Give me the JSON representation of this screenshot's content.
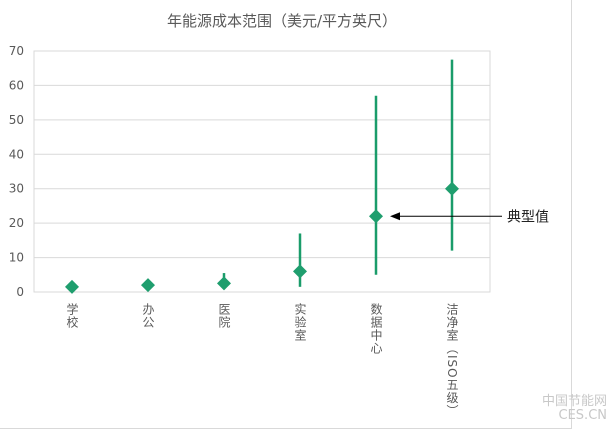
{
  "chart_data": {
    "type": "scatter",
    "title": "年能源成本范围（美元/平方英尺）",
    "categories": [
      "学校",
      "办公",
      "医院",
      "实验室",
      "数据中心",
      "洁净室（ISO五级）"
    ],
    "typical": [
      1.5,
      2,
      2.5,
      6,
      22,
      30
    ],
    "low": [
      null,
      null,
      1,
      1.5,
      5,
      12
    ],
    "high": [
      null,
      null,
      5.5,
      17,
      57,
      67.5
    ],
    "ylim": [
      0,
      70
    ],
    "yticks": [
      0,
      10,
      20,
      30,
      40,
      50,
      60,
      70
    ],
    "grid": true,
    "annotation": {
      "text": "典型值",
      "category_index": 4
    },
    "colors": {
      "series": "#1a9c6a",
      "marker": "#1f9e6e",
      "grid": "#d9d9d9",
      "text": "#595959"
    }
  },
  "watermark": {
    "line1": "中国节能网",
    "line2": "CES.CN"
  }
}
